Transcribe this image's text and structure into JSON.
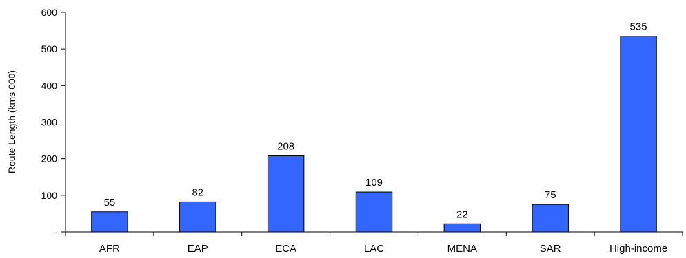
{
  "chart_data": {
    "type": "bar",
    "title": "",
    "xlabel": "",
    "ylabel": "Route Length (kms 000)",
    "categories": [
      "AFR",
      "EAP",
      "ECA",
      "LAC",
      "MENA",
      "SAR",
      "High-income"
    ],
    "values": [
      55,
      82,
      208,
      109,
      22,
      75,
      535
    ],
    "data_labels": [
      "55",
      "82",
      "208",
      "109",
      "22",
      "75",
      "535"
    ],
    "ylim": [
      0,
      600
    ],
    "yticks": [
      0,
      100,
      200,
      300,
      400,
      500,
      600
    ],
    "ytick_labels": [
      "-",
      "100",
      "200",
      "300",
      "400",
      "500",
      "600"
    ],
    "grid": false,
    "legend": "none",
    "bar_color": "#3366FF"
  }
}
